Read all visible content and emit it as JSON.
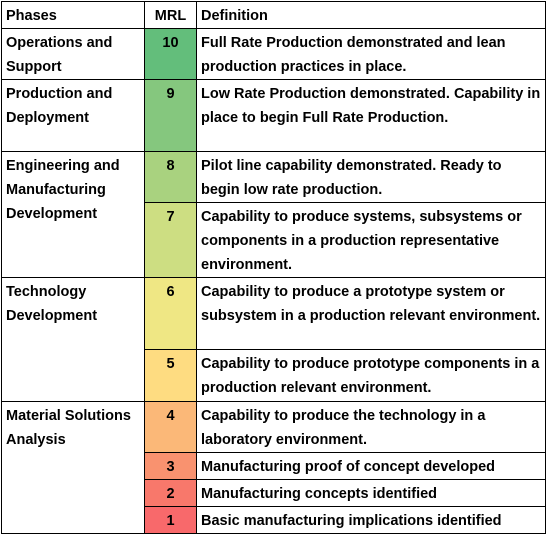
{
  "header": {
    "phases": "Phases",
    "mrl": "MRL",
    "definition": "Definition"
  },
  "rows": [
    {
      "phase": "Operations and Support",
      "mrl": "10",
      "color": "#63be7b",
      "definition": "Full Rate Production demonstrated and lean production practices in place."
    },
    {
      "phase": "Production and Deployment",
      "mrl": "9",
      "color": "#85c77e",
      "definition": "Low Rate Production demonstrated. Capability in place to begin Full Rate Production."
    },
    {
      "phase": "Engineering and Manufacturing Development",
      "mrl": "8",
      "color": "#a9d27f",
      "definition": "Pilot line capability demonstrated. Ready to begin low rate production."
    },
    {
      "phase": "",
      "mrl": "7",
      "color": "#cdde82",
      "definition": "Capability to produce systems, subsystems or components in a production representative environment."
    },
    {
      "phase": "Technology Development",
      "mrl": "6",
      "color": "#efe784",
      "definition": "Capability to produce a prototype system or subsystem in a production relevant environment."
    },
    {
      "phase": "",
      "mrl": "5",
      "color": "#fedc81",
      "definition": "Capability to produce prototype components in a production relevant environment."
    },
    {
      "phase": "Material Solutions Analysis",
      "mrl": "4",
      "color": "#fbb878",
      "definition": "Capability to produce the technology in a laboratory environment."
    },
    {
      "phase": "",
      "mrl": "3",
      "color": "#f9926f",
      "definition": "Manufacturing proof of concept developed"
    },
    {
      "phase": "",
      "mrl": "2",
      "color": "#f8786b",
      "definition": "Manufacturing concepts identified"
    },
    {
      "phase": "",
      "mrl": "1",
      "color": "#f8696b",
      "definition": "Basic manufacturing implications identified"
    }
  ]
}
